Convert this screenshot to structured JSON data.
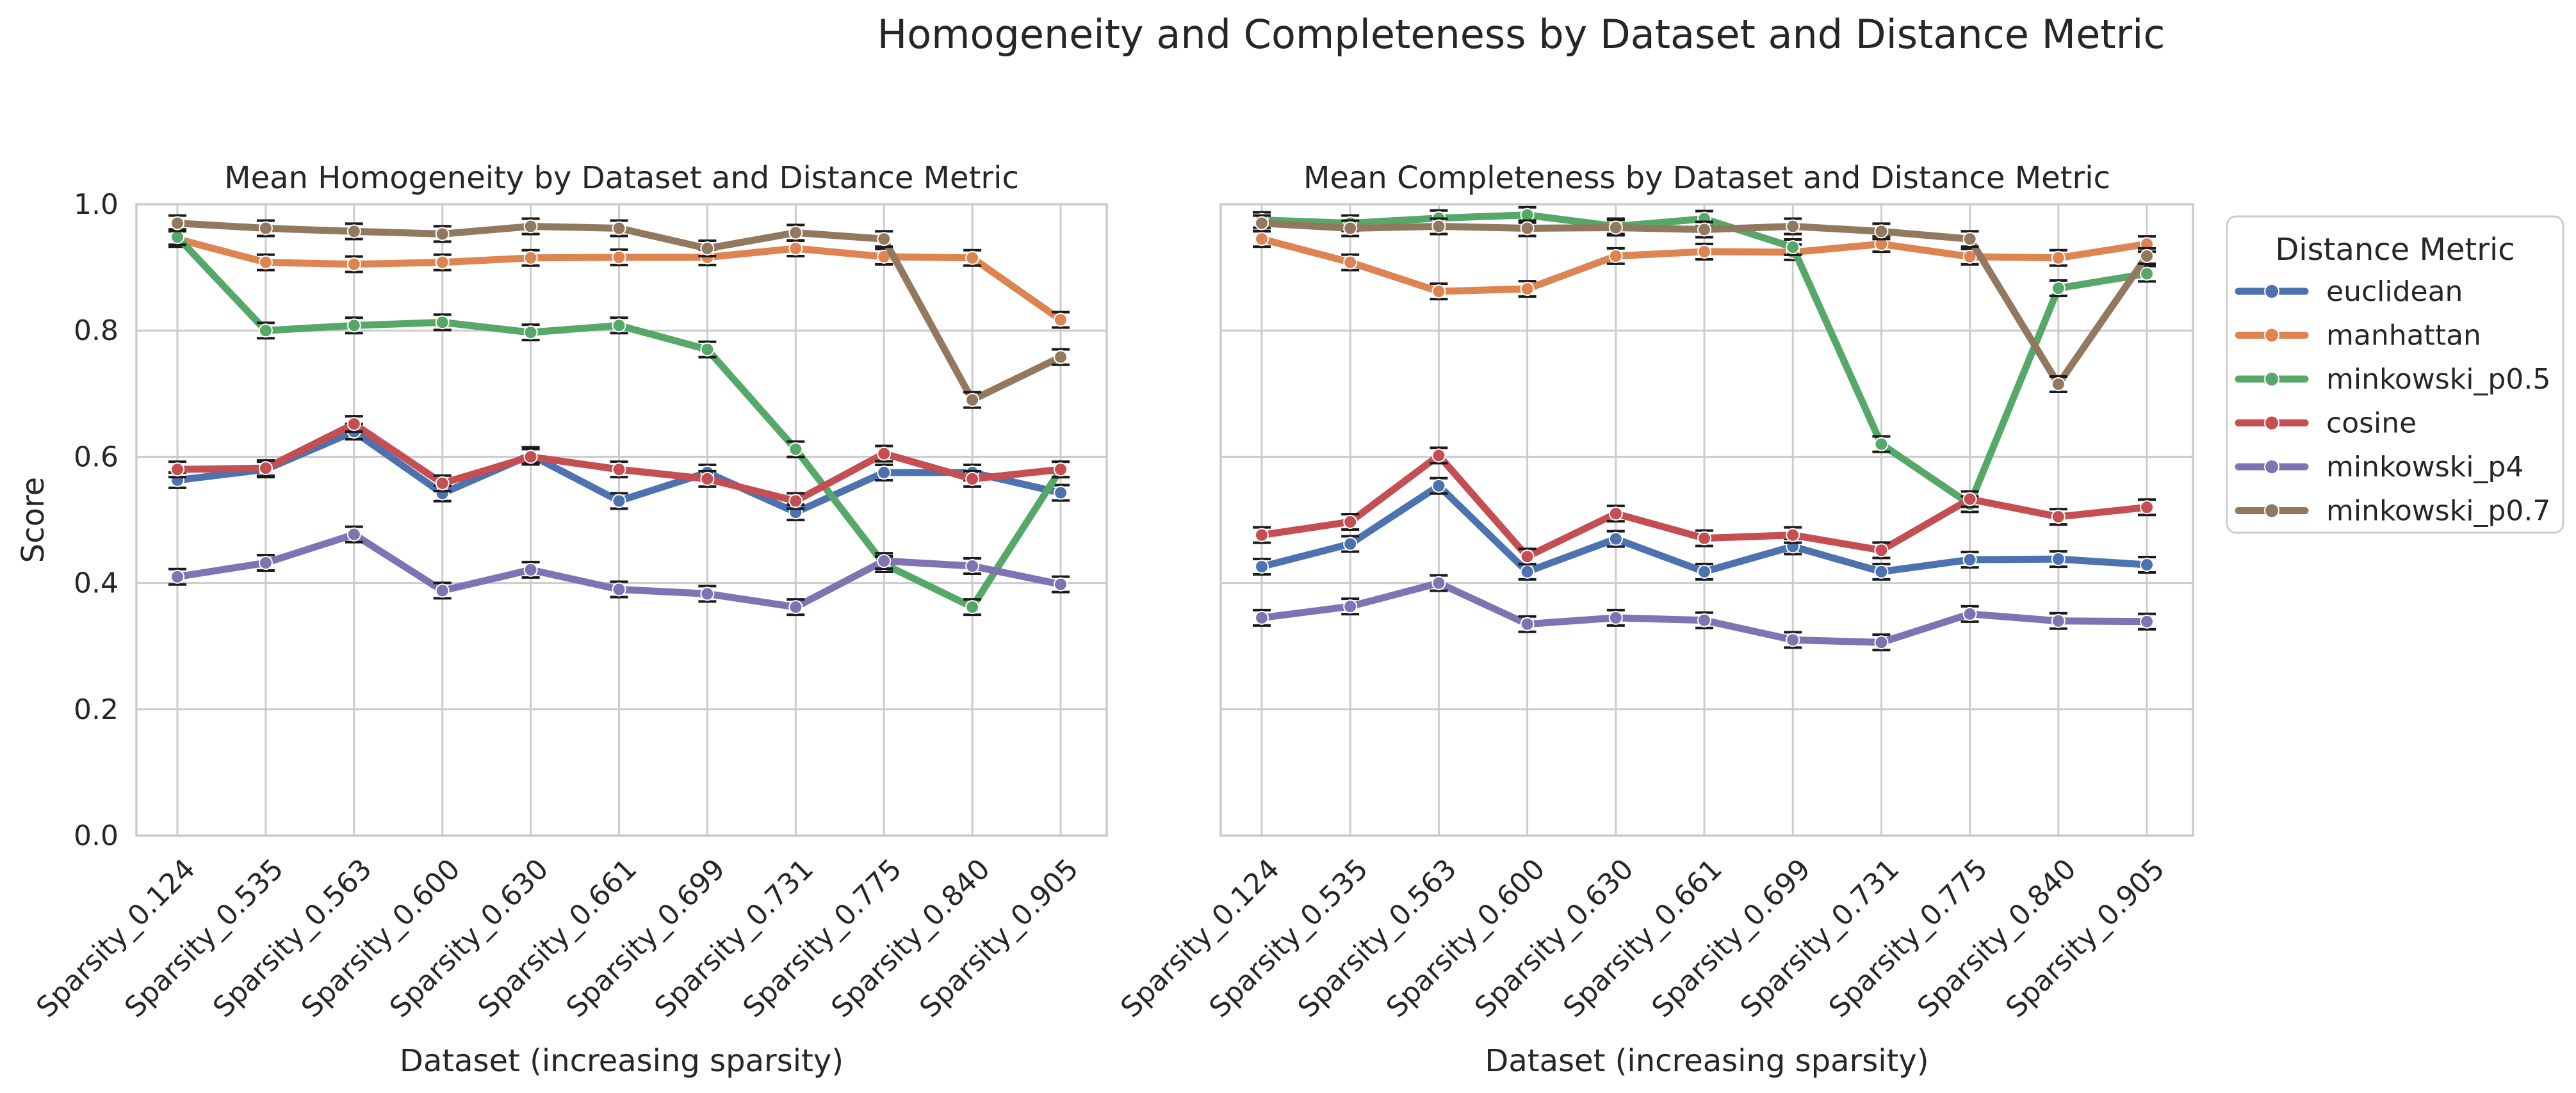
{
  "figure": {
    "suptitle": "Homogeneity and Completeness by Dataset and Distance Metric"
  },
  "legend": {
    "title": "Distance Metric",
    "placement": "right, outside"
  },
  "chart_data": [
    {
      "type": "line",
      "title": "Mean Homogeneity by Dataset and Distance Metric",
      "xlabel": "Dataset (increasing sparsity)",
      "ylabel": "Score",
      "ylim": [
        0,
        1.0
      ],
      "yticks": [
        "0.0",
        "0.2",
        "0.4",
        "0.6",
        "0.8",
        "1.0"
      ],
      "grid": true,
      "error_bars": true,
      "categories": [
        "Sparsity_0.124",
        "Sparsity_0.535",
        "Sparsity_0.563",
        "Sparsity_0.600",
        "Sparsity_0.630",
        "Sparsity_0.661",
        "Sparsity_0.699",
        "Sparsity_0.731",
        "Sparsity_0.775",
        "Sparsity_0.840",
        "Sparsity_0.905"
      ],
      "series": [
        {
          "name": "euclidean",
          "color": "#4c72b0",
          "values": [
            0.563,
            0.58,
            0.64,
            0.542,
            0.603,
            0.53,
            0.575,
            0.512,
            0.575,
            0.575,
            0.543
          ]
        },
        {
          "name": "manhattan",
          "color": "#dd8452",
          "values": [
            0.945,
            0.908,
            0.905,
            0.908,
            0.915,
            0.916,
            0.916,
            0.93,
            0.917,
            0.915,
            0.817
          ]
        },
        {
          "name": "minkowski_p0.5",
          "color": "#55a868",
          "values": [
            0.948,
            0.8,
            0.808,
            0.813,
            0.797,
            0.808,
            0.77,
            0.612,
            0.43,
            0.362,
            0.58
          ]
        },
        {
          "name": "cosine",
          "color": "#c44e52",
          "values": [
            0.58,
            0.582,
            0.652,
            0.558,
            0.6,
            0.58,
            0.565,
            0.53,
            0.605,
            0.565,
            0.58
          ]
        },
        {
          "name": "minkowski_p4",
          "color": "#8172b3",
          "values": [
            0.41,
            0.432,
            0.477,
            0.388,
            0.421,
            0.39,
            0.383,
            0.362,
            0.435,
            0.427,
            0.398
          ]
        },
        {
          "name": "minkowski_p0.7",
          "color": "#937860",
          "values": [
            0.97,
            0.962,
            0.957,
            0.953,
            0.965,
            0.962,
            0.93,
            0.955,
            0.945,
            0.69,
            0.758
          ]
        }
      ]
    },
    {
      "type": "line",
      "title": "Mean Completeness by Dataset and Distance Metric",
      "xlabel": "Dataset (increasing sparsity)",
      "ylabel": "",
      "ylim": [
        0,
        1.0
      ],
      "grid": true,
      "error_bars": true,
      "categories": [
        "Sparsity_0.124",
        "Sparsity_0.535",
        "Sparsity_0.563",
        "Sparsity_0.600",
        "Sparsity_0.630",
        "Sparsity_0.661",
        "Sparsity_0.699",
        "Sparsity_0.731",
        "Sparsity_0.775",
        "Sparsity_0.840",
        "Sparsity_0.905"
      ],
      "series": [
        {
          "name": "euclidean",
          "color": "#4c72b0",
          "values": [
            0.426,
            0.462,
            0.554,
            0.418,
            0.47,
            0.418,
            0.458,
            0.418,
            0.437,
            0.438,
            0.429
          ]
        },
        {
          "name": "manhattan",
          "color": "#dd8452",
          "values": [
            0.945,
            0.908,
            0.862,
            0.866,
            0.918,
            0.925,
            0.924,
            0.937,
            0.917,
            0.915,
            0.937
          ]
        },
        {
          "name": "minkowski_p0.5",
          "color": "#55a868",
          "values": [
            0.975,
            0.97,
            0.978,
            0.983,
            0.965,
            0.977,
            0.932,
            0.62,
            0.525,
            0.867,
            0.89
          ]
        },
        {
          "name": "cosine",
          "color": "#c44e52",
          "values": [
            0.476,
            0.497,
            0.602,
            0.442,
            0.51,
            0.471,
            0.476,
            0.452,
            0.533,
            0.505,
            0.52
          ]
        },
        {
          "name": "minkowski_p4",
          "color": "#8172b3",
          "values": [
            0.345,
            0.363,
            0.4,
            0.335,
            0.345,
            0.341,
            0.31,
            0.306,
            0.351,
            0.34,
            0.339
          ]
        },
        {
          "name": "minkowski_p0.7",
          "color": "#937860",
          "values": [
            0.97,
            0.962,
            0.965,
            0.962,
            0.963,
            0.96,
            0.965,
            0.957,
            0.945,
            0.715,
            0.918
          ]
        }
      ]
    }
  ]
}
